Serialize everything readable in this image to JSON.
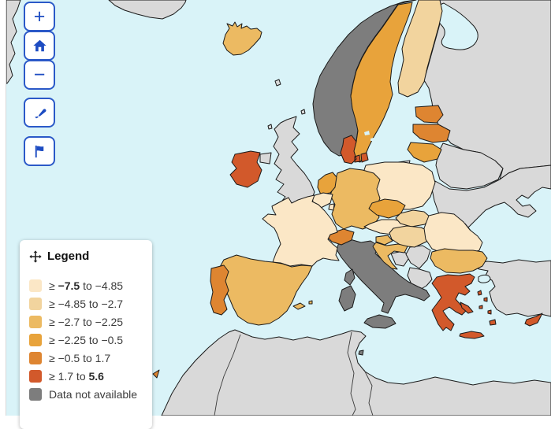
{
  "map_controls": {
    "zoom_in_label": "+",
    "zoom_out_label": "−"
  },
  "legend": {
    "title": "Legend",
    "items": [
      {
        "color_key": "c1",
        "parts": [
          {
            "t": "≥ "
          },
          {
            "t": "−7.5",
            "b": true
          },
          {
            "t": " to −4.85"
          }
        ]
      },
      {
        "color_key": "c2",
        "parts": [
          {
            "t": "≥ −4.85 to −2.7"
          }
        ]
      },
      {
        "color_key": "c3",
        "parts": [
          {
            "t": "≥ −2.7 to −2.25"
          }
        ]
      },
      {
        "color_key": "c4",
        "parts": [
          {
            "t": "≥ −2.25 to −0.5"
          }
        ]
      },
      {
        "color_key": "c5",
        "parts": [
          {
            "t": "≥ −0.5 to 1.7"
          }
        ]
      },
      {
        "color_key": "c6",
        "parts": [
          {
            "t": "≥ 1.7 to "
          },
          {
            "t": "5.6",
            "b": true
          }
        ]
      },
      {
        "color_key": "no_data",
        "parts": [
          {
            "t": "Data not available"
          }
        ]
      }
    ]
  },
  "map": {
    "class_colors": {
      "c1": "#fbe7c6",
      "c2": "#f2d49e",
      "c3": "#ecba62",
      "c4": "#e8a33b",
      "c5": "#de8531",
      "c6": "#d2592b",
      "no_data": "#7d7d7d",
      "non_eu": "#d9d9d9",
      "sea": "#d9f3f8"
    },
    "countries": {
      "greenland": "non_eu",
      "west-edge-land": "non_eu",
      "russia": "non_eu",
      "belarus": "non_eu",
      "ukraine": "non_eu",
      "moldova": "non_eu",
      "turkey": "non_eu",
      "bosnia": "non_eu",
      "serbia": "non_eu",
      "albania-macedonia": "non_eu",
      "north-africa": "non_eu",
      "united-kingdom": "non_eu",
      "faroe": "non_eu",
      "kaliningrad": "non_eu",
      "norway": "no_data",
      "italy": "no_data",
      "corsica": "no_data",
      "malta": "no_data",
      "iceland": "c3",
      "sweden": "c4",
      "finland": "c2",
      "estonia": "c5",
      "latvia": "c5",
      "lithuania": "c4",
      "denmark": "c6",
      "poland": "c1",
      "germany": "c3",
      "netherlands": "c4",
      "belgium": "c1",
      "luxembourg": "c1",
      "czechia": "c4",
      "austria": "c1",
      "slovakia": "c2",
      "hungary": "c2",
      "switzerland": "c5",
      "slovenia": "c3",
      "croatia": "c3",
      "france": "c1",
      "spain": "c3",
      "balearics": "c3",
      "portugal": "c5",
      "madeira": "c5",
      "ireland": "c6",
      "romania": "c1",
      "bulgaria": "c3",
      "greece": "c6",
      "greek-islands": "c6",
      "cyprus": "c6"
    }
  }
}
